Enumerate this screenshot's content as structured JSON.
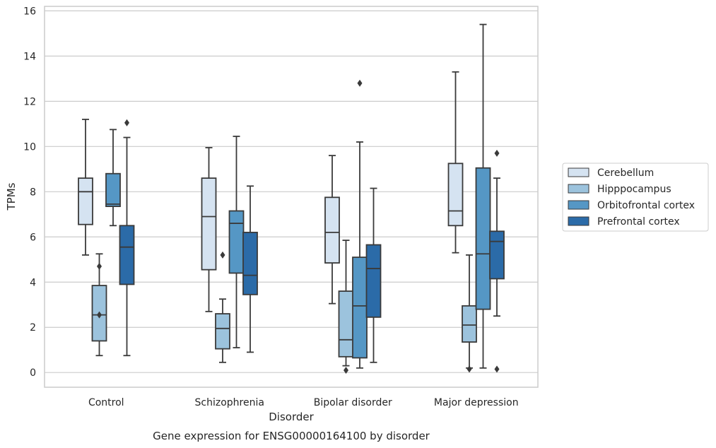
{
  "chart_data": {
    "type": "box",
    "title": "Gene expression for ENSG00000164100 by disorder",
    "xlabel": "Disorder",
    "ylabel": "TPMs",
    "ylim": [
      -0.65,
      16.2
    ],
    "yticks": [
      0,
      2,
      4,
      6,
      8,
      10,
      12,
      14,
      16
    ],
    "grid": true,
    "legend_position": "right",
    "categories": [
      "Control",
      "Schizophrenia",
      "Bipolar disorder",
      "Major depression"
    ],
    "series": [
      {
        "name": "Cerebellum",
        "color": "#d5e3f1",
        "boxes": [
          {
            "whisker_low": 5.2,
            "q1": 6.55,
            "median": 8.0,
            "q3": 8.6,
            "whisker_high": 11.2,
            "outliers": []
          },
          {
            "whisker_low": 2.7,
            "q1": 4.55,
            "median": 6.9,
            "q3": 8.6,
            "whisker_high": 9.95,
            "outliers": []
          },
          {
            "whisker_low": 3.05,
            "q1": 4.85,
            "median": 6.2,
            "q3": 7.75,
            "whisker_high": 9.6,
            "outliers": []
          },
          {
            "whisker_low": 5.3,
            "q1": 6.5,
            "median": 7.15,
            "q3": 9.25,
            "whisker_high": 13.3,
            "outliers": []
          }
        ]
      },
      {
        "name": "Hipppocampus",
        "color": "#9cc3dd",
        "boxes": [
          {
            "whisker_low": 0.75,
            "q1": 1.4,
            "median": 2.55,
            "q3": 3.85,
            "whisker_high": 5.25,
            "outliers": [
              4.7,
              2.55
            ]
          },
          {
            "whisker_low": 0.45,
            "q1": 1.05,
            "median": 1.95,
            "q3": 2.6,
            "whisker_high": 3.25,
            "outliers": [
              5.2
            ]
          },
          {
            "whisker_low": 0.3,
            "q1": 0.7,
            "median": 1.45,
            "q3": 3.6,
            "whisker_high": 5.85,
            "outliers": [
              0.1
            ]
          },
          {
            "whisker_low": 0.2,
            "q1": 1.35,
            "median": 2.1,
            "q3": 2.95,
            "whisker_high": 5.2,
            "outliers": [
              0.15
            ]
          }
        ]
      },
      {
        "name": "Orbitofrontal cortex",
        "color": "#5597c5",
        "boxes": [
          {
            "whisker_low": 6.5,
            "q1": 7.35,
            "median": 7.45,
            "q3": 8.8,
            "whisker_high": 10.75,
            "outliers": []
          },
          {
            "whisker_low": 1.1,
            "q1": 4.4,
            "median": 6.6,
            "q3": 7.15,
            "whisker_high": 10.45,
            "outliers": []
          },
          {
            "whisker_low": 0.2,
            "q1": 0.65,
            "median": 2.95,
            "q3": 5.1,
            "whisker_high": 10.2,
            "outliers": [
              12.8
            ]
          },
          {
            "whisker_low": 0.2,
            "q1": 2.8,
            "median": 5.25,
            "q3": 9.05,
            "whisker_high": 15.4,
            "outliers": []
          }
        ]
      },
      {
        "name": "Prefrontal cortex",
        "color": "#2b6ba8",
        "boxes": [
          {
            "whisker_low": 0.75,
            "q1": 3.9,
            "median": 5.55,
            "q3": 6.5,
            "whisker_high": 10.4,
            "outliers": [
              11.05
            ]
          },
          {
            "whisker_low": 0.9,
            "q1": 3.45,
            "median": 4.3,
            "q3": 6.2,
            "whisker_high": 8.25,
            "outliers": []
          },
          {
            "whisker_low": 0.45,
            "q1": 2.45,
            "median": 4.6,
            "q3": 5.65,
            "whisker_high": 8.15,
            "outliers": []
          },
          {
            "whisker_low": 2.5,
            "q1": 4.15,
            "median": 5.8,
            "q3": 6.25,
            "whisker_high": 8.6,
            "outliers": [
              9.7,
              0.15
            ]
          }
        ]
      }
    ]
  }
}
